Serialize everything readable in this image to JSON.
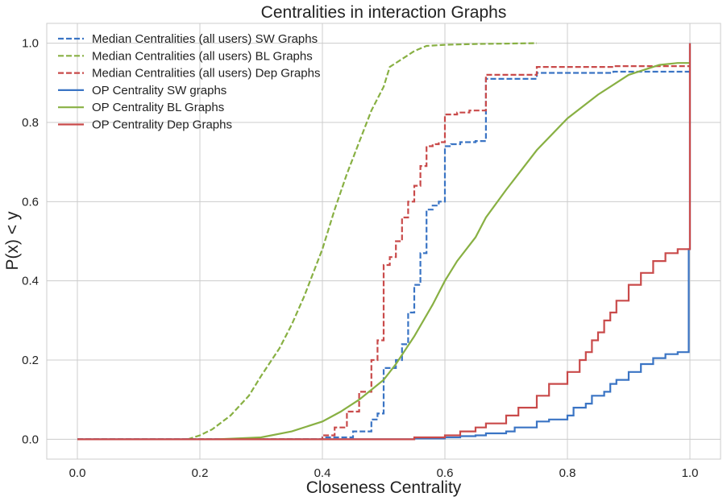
{
  "chart_data": {
    "type": "line",
    "title": "Centralities in interaction Graphs",
    "xlabel": "Closeness Centrality",
    "ylabel": "P(x) < y",
    "xlim": [
      -0.05,
      1.05
    ],
    "ylim": [
      -0.05,
      1.05
    ],
    "xticks": [
      0.0,
      0.2,
      0.4,
      0.6,
      0.8,
      1.0
    ],
    "xtick_labels": [
      "0.0",
      "0.2",
      "0.4",
      "0.6",
      "0.8",
      "1.0"
    ],
    "yticks": [
      0.0,
      0.2,
      0.4,
      0.6,
      0.8,
      1.0
    ],
    "ytick_labels": [
      "0.0",
      "0.2",
      "0.4",
      "0.6",
      "0.8",
      "1.0"
    ],
    "grid": true,
    "legend_position": "top-left",
    "series": [
      {
        "name": "Median Centralities (all users) SW Graphs",
        "color": "#3a74c4",
        "style": "dashed",
        "step": true,
        "x": [
          0.0,
          0.35,
          0.4,
          0.45,
          0.48,
          0.49,
          0.5,
          0.5,
          0.52,
          0.53,
          0.54,
          0.55,
          0.56,
          0.57,
          0.58,
          0.59,
          0.6,
          0.61,
          0.625,
          0.65,
          0.667,
          0.667,
          0.75,
          0.875,
          1.0
        ],
        "y": [
          0.0,
          0.0,
          0.005,
          0.02,
          0.05,
          0.065,
          0.065,
          0.18,
          0.2,
          0.24,
          0.32,
          0.39,
          0.47,
          0.58,
          0.59,
          0.6,
          0.74,
          0.745,
          0.75,
          0.753,
          0.755,
          0.91,
          0.925,
          0.928,
          0.928
        ]
      },
      {
        "name": "Median Centralities (all users) BL Graphs",
        "color": "#88b043",
        "style": "dashed",
        "step": false,
        "x": [
          0.18,
          0.2,
          0.22,
          0.25,
          0.28,
          0.3,
          0.33,
          0.35,
          0.37,
          0.39,
          0.4,
          0.42,
          0.44,
          0.46,
          0.48,
          0.5,
          0.51,
          0.53,
          0.55,
          0.57,
          0.6,
          0.65,
          0.7,
          0.75
        ],
        "y": [
          0.0,
          0.01,
          0.025,
          0.06,
          0.11,
          0.16,
          0.23,
          0.29,
          0.36,
          0.44,
          0.48,
          0.58,
          0.67,
          0.75,
          0.83,
          0.89,
          0.94,
          0.96,
          0.98,
          0.993,
          0.996,
          0.998,
          0.999,
          1.0
        ]
      },
      {
        "name": "Median Centralities (all users) Dep Graphs",
        "color": "#c94a4a",
        "style": "dashed",
        "step": true,
        "x": [
          0.0,
          0.35,
          0.4,
          0.42,
          0.44,
          0.46,
          0.48,
          0.49,
          0.5,
          0.5,
          0.51,
          0.52,
          0.53,
          0.54,
          0.55,
          0.56,
          0.57,
          0.58,
          0.59,
          0.6,
          0.62,
          0.64,
          0.667,
          0.667,
          0.75,
          0.8,
          0.875,
          1.0
        ],
        "y": [
          0.0,
          0.0,
          0.01,
          0.03,
          0.07,
          0.12,
          0.2,
          0.25,
          0.28,
          0.44,
          0.46,
          0.5,
          0.56,
          0.6,
          0.64,
          0.69,
          0.74,
          0.745,
          0.75,
          0.82,
          0.825,
          0.83,
          0.83,
          0.92,
          0.94,
          0.94,
          0.942,
          0.942
        ]
      },
      {
        "name": "OP Centrality SW graphs",
        "color": "#3a74c4",
        "style": "solid",
        "step": true,
        "x": [
          0.0,
          0.5,
          0.55,
          0.6,
          0.625,
          0.65,
          0.667,
          0.7,
          0.714,
          0.75,
          0.77,
          0.8,
          0.81,
          0.83,
          0.84,
          0.86,
          0.87,
          0.88,
          0.9,
          0.92,
          0.94,
          0.96,
          0.98,
          0.998,
          0.998,
          1.0
        ],
        "y": [
          0.0,
          0.0,
          0.002,
          0.005,
          0.008,
          0.01,
          0.015,
          0.02,
          0.03,
          0.045,
          0.05,
          0.06,
          0.08,
          0.09,
          0.11,
          0.12,
          0.14,
          0.15,
          0.17,
          0.19,
          0.205,
          0.215,
          0.22,
          0.22,
          0.48,
          1.0
        ]
      },
      {
        "name": "OP Centrality BL Graphs",
        "color": "#88b043",
        "style": "solid",
        "step": false,
        "x": [
          0.23,
          0.3,
          0.35,
          0.4,
          0.43,
          0.46,
          0.5,
          0.52,
          0.55,
          0.58,
          0.6,
          0.62,
          0.65,
          0.667,
          0.7,
          0.75,
          0.8,
          0.85,
          0.9,
          0.95,
          0.98,
          1.0
        ],
        "y": [
          0.0,
          0.005,
          0.02,
          0.045,
          0.07,
          0.1,
          0.15,
          0.19,
          0.26,
          0.34,
          0.4,
          0.45,
          0.51,
          0.56,
          0.63,
          0.73,
          0.81,
          0.87,
          0.92,
          0.945,
          0.95,
          0.95
        ]
      },
      {
        "name": "OP Centrality Dep Graphs",
        "color": "#c94a4a",
        "style": "solid",
        "step": true,
        "x": [
          0.0,
          0.5,
          0.55,
          0.6,
          0.625,
          0.65,
          0.667,
          0.7,
          0.72,
          0.75,
          0.77,
          0.8,
          0.82,
          0.83,
          0.84,
          0.85,
          0.86,
          0.87,
          0.88,
          0.9,
          0.92,
          0.94,
          0.96,
          0.98,
          0.998,
          0.998,
          1.0
        ],
        "y": [
          0.0,
          0.0,
          0.005,
          0.01,
          0.02,
          0.03,
          0.04,
          0.06,
          0.08,
          0.11,
          0.14,
          0.17,
          0.2,
          0.22,
          0.25,
          0.27,
          0.3,
          0.32,
          0.35,
          0.39,
          0.42,
          0.45,
          0.47,
          0.48,
          0.48,
          0.48,
          1.0
        ]
      }
    ]
  }
}
